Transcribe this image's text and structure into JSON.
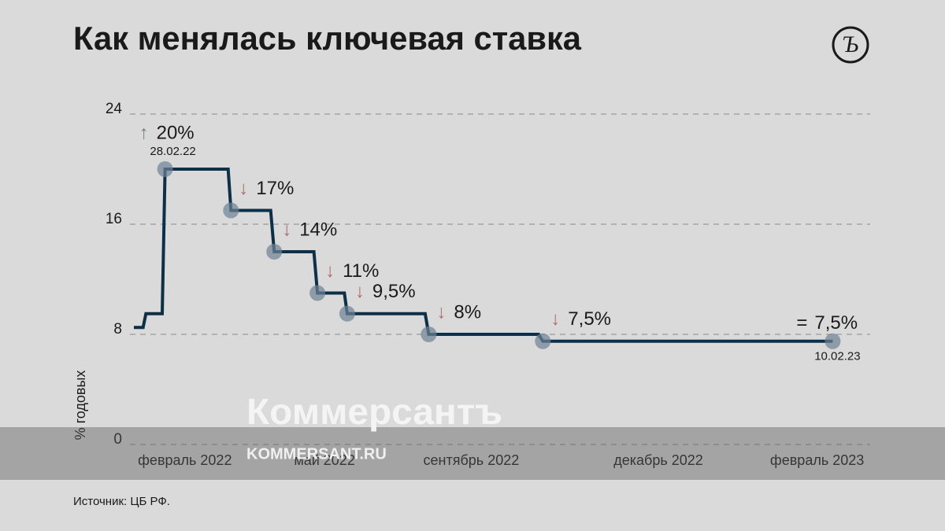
{
  "chart_data": {
    "type": "step-line",
    "title": "Как менялась ключевая ставка",
    "y_label": "% годовых",
    "source": "Источник: ЦБ РФ.",
    "ylim": [
      0,
      24
    ],
    "yticks": [
      0,
      8,
      16,
      24
    ],
    "xlim": [
      0,
      100
    ],
    "xticks": [
      {
        "value": 7.2,
        "label": "февраль 2022"
      },
      {
        "value": 26.9,
        "label": "май 2022"
      },
      {
        "value": 47.6,
        "label": "сентябрь 2022"
      },
      {
        "value": 74,
        "label": "декабрь 2022"
      },
      {
        "value": 96.4,
        "label": "февраль 2023"
      }
    ],
    "grid": true,
    "series": [
      {
        "color": "#0d3048",
        "x": [
          0,
          1.3,
          1.7,
          4,
          4.4,
          13.3,
          13.7,
          19.3,
          19.8,
          25.4,
          25.9,
          29.7,
          30.1,
          41.1,
          41.6,
          57.1,
          57.7,
          98.6
        ],
        "values": [
          8.5,
          8.5,
          9.5,
          9.5,
          20,
          20,
          17,
          17,
          14,
          14,
          11,
          11,
          9.5,
          9.5,
          8,
          8,
          7.5,
          7.5
        ]
      }
    ],
    "points": [
      {
        "x": 4.4,
        "value": 20,
        "label": "20%",
        "arrow": "↑",
        "date": "28.02.22"
      },
      {
        "x": 13.7,
        "value": 17,
        "label": "17%",
        "arrow": "↓"
      },
      {
        "x": 19.8,
        "value": 14,
        "label": "14%",
        "arrow": "↓"
      },
      {
        "x": 25.9,
        "value": 11,
        "label": "11%",
        "arrow": "↓"
      },
      {
        "x": 30.1,
        "value": 9.5,
        "label": "9,5%",
        "arrow": "↓"
      },
      {
        "x": 41.6,
        "value": 8,
        "label": "8%",
        "arrow": "↓"
      },
      {
        "x": 57.7,
        "value": 7.5,
        "label": "7,5%",
        "arrow": "↓"
      },
      {
        "x": 98.6,
        "value": 7.5,
        "label": "7,5%",
        "arrow": "=",
        "date": "10.02.23"
      }
    ],
    "arrow_colors": {
      "↑": "#74867c",
      "↓": "#b06a6a",
      "=": "#1a1a1a"
    },
    "watermark": {
      "brand": "Коммерсантъ",
      "site": "KOMMERSANT.RU"
    }
  }
}
